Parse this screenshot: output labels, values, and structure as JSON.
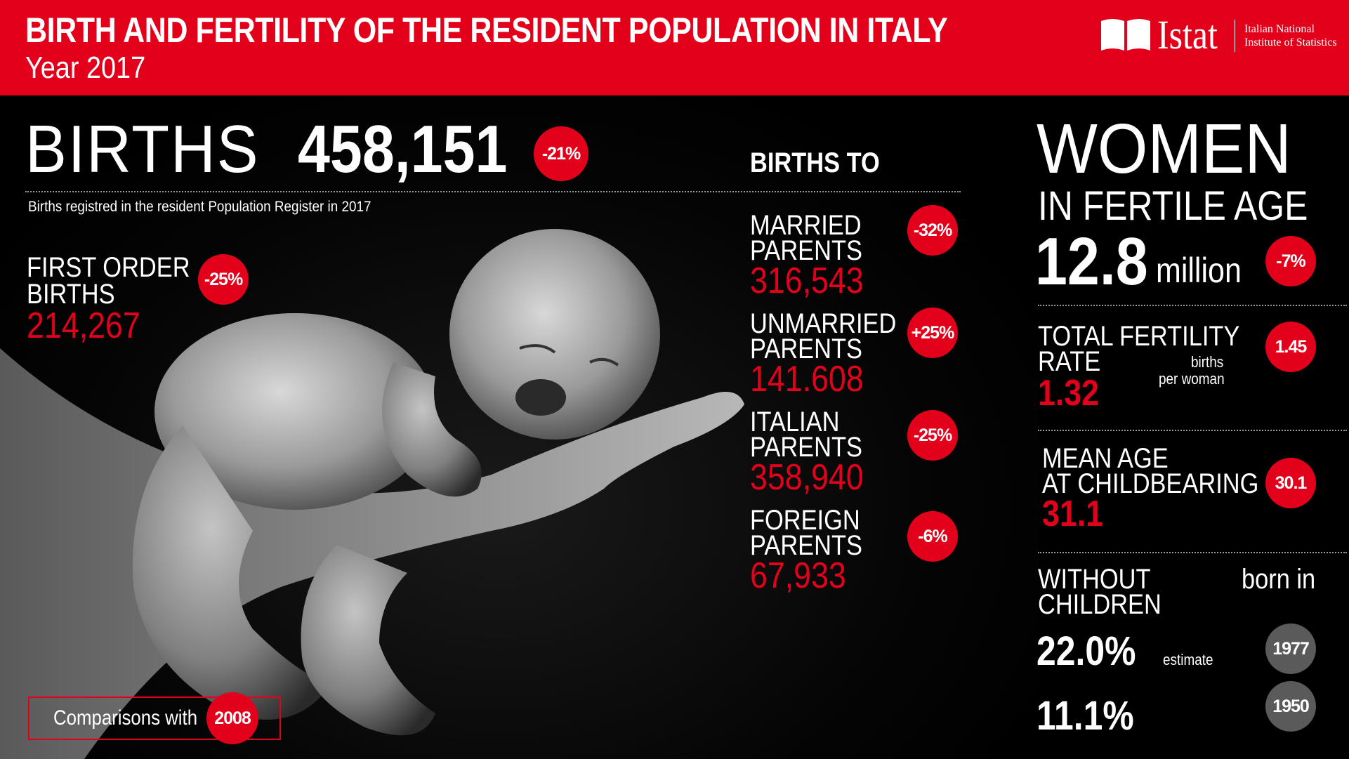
{
  "header": {
    "title": "BIRTH AND FERTILITY OF THE RESIDENT POPULATION IN ITALY",
    "subtitle": "Year 2017",
    "logo_word": "Istat",
    "logo_line1": "Italian National",
    "logo_line2": "Institute of Statistics",
    "brand_color": "#e3001b"
  },
  "births": {
    "label": "BIRTHS",
    "value": "458,151",
    "change": "-21%",
    "note": "Births registred in the resident Population Register in 2017"
  },
  "first_order": {
    "line1": "FIRST ORDER",
    "line2": "BIRTHS",
    "value": "214,267",
    "change": "-25%"
  },
  "births_to": {
    "title": "BIRTHS TO",
    "items": [
      {
        "line1": "MARRIED",
        "line2": "PARENTS",
        "value": "316,543",
        "change": "-32%"
      },
      {
        "line1": "UNMARRIED",
        "line2": "PARENTS",
        "value": "141.608",
        "change": "+25%"
      },
      {
        "line1": "ITALIAN",
        "line2": "PARENTS",
        "value": "358,940",
        "change": "-25%"
      },
      {
        "line1": "FOREIGN",
        "line2": "PARENTS",
        "value": "67,933",
        "change": "-6%"
      }
    ]
  },
  "women": {
    "line1": "WOMEN",
    "line2": "IN FERTILE AGE",
    "value": "12.8",
    "unit": "million",
    "change": "-7%"
  },
  "fertility": {
    "line1": "TOTAL FERTILITY",
    "line2": "RATE",
    "value": "1.32",
    "unit1": "births",
    "unit2": "per woman",
    "compare": "1.45"
  },
  "mean_age": {
    "line1": "MEAN AGE",
    "line2": "AT CHILDBEARING",
    "value": "31.1",
    "compare": "30.1"
  },
  "childless": {
    "line1": "WITHOUT",
    "line2": "CHILDREN",
    "born_in": "born in",
    "rows": [
      {
        "pct": "22.0%",
        "note": "estimate",
        "year": "1977"
      },
      {
        "pct": "11.1%",
        "note": "",
        "year": "1950"
      }
    ]
  },
  "comparison": {
    "label": "Comparisons with",
    "year": "2008"
  }
}
